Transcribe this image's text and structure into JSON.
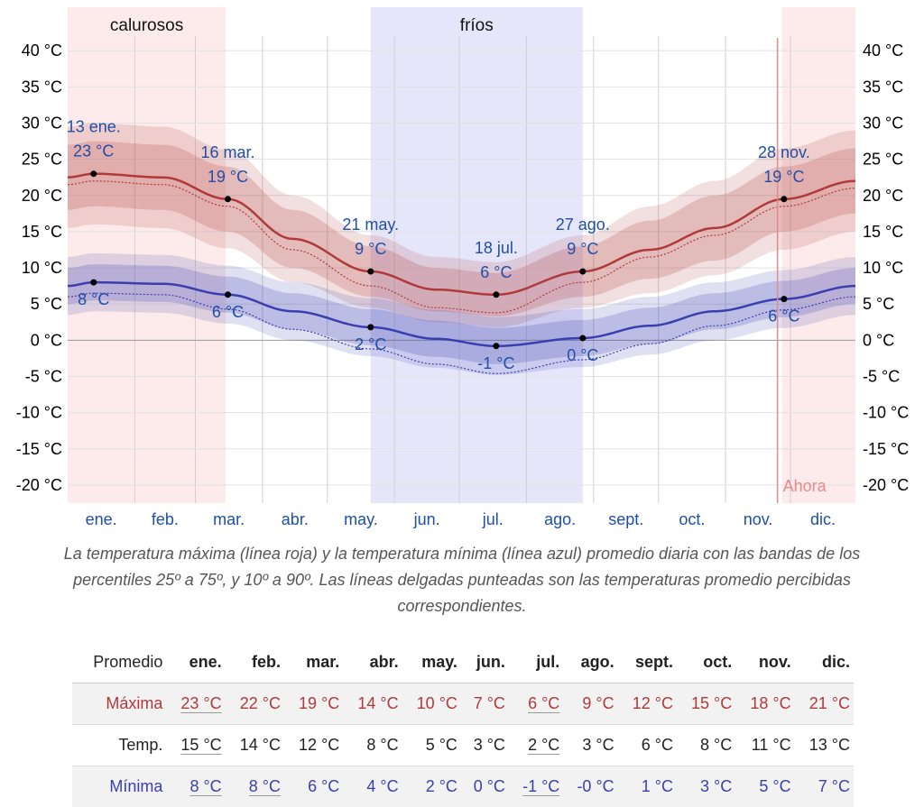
{
  "chart_data": {
    "type": "area",
    "y_ticks": [
      "40 °C",
      "35 °C",
      "30 °C",
      "25 °C",
      "20 °C",
      "15 °C",
      "10 °C",
      "5 °C",
      "0 °C",
      "-5 °C",
      "-10 °C",
      "-15 °C",
      "-20 °C"
    ],
    "ylim": [
      -22.5,
      47
    ],
    "months": [
      "ene.",
      "feb.",
      "mar.",
      "abr.",
      "may.",
      "jun.",
      "jul.",
      "ago.",
      "sept.",
      "oct.",
      "nov.",
      "dic."
    ],
    "x_day_range": [
      1,
      365
    ],
    "season_labels": {
      "warm": "calurosos",
      "cold": "fríos"
    },
    "season_bands": {
      "warm": [
        {
          "start_day": 1,
          "end_day": 74
        },
        {
          "start_day": 331,
          "end_day": 365
        }
      ],
      "cold": [
        {
          "start_day": 141,
          "end_day": 239
        }
      ]
    },
    "now_label": "Ahora",
    "now_day": 329,
    "colors": {
      "max": "#b03a3a",
      "min": "#3a3fb0",
      "warm_band": "#fdeaea",
      "cold_band": "#e6e6fb",
      "now_line": "#e58a8a"
    },
    "series": [
      {
        "key": "max",
        "x": [
          1,
          13,
          45,
          75,
          105,
          141,
          171,
          199,
          239,
          270,
          300,
          332,
          365
        ],
        "y": [
          22.5,
          23,
          22.5,
          19.5,
          14,
          9.5,
          7,
          6.3,
          9.5,
          12.5,
          15.5,
          19.5,
          22
        ],
        "p25_75": [
          4.5,
          4.5,
          4.5,
          4.5,
          4,
          3.5,
          3,
          3,
          3.5,
          4,
          4.5,
          4.5,
          4.5
        ],
        "p10_90": [
          7,
          7,
          7,
          6.8,
          6,
          5,
          4.5,
          4.5,
          5,
          6,
          6.5,
          7,
          7
        ],
        "feels_like_offset": [
          -1,
          -1,
          -1,
          -1,
          -1.5,
          -2,
          -2.5,
          -2.5,
          -1.5,
          -1,
          -1,
          -1,
          -1
        ]
      },
      {
        "key": "min",
        "x": [
          1,
          13,
          45,
          75,
          105,
          141,
          171,
          199,
          239,
          270,
          300,
          332,
          365
        ],
        "y": [
          7.5,
          8,
          7.8,
          6.3,
          4,
          1.8,
          0.2,
          -0.8,
          0.3,
          2,
          4,
          5.7,
          7.5
        ],
        "p25_75": [
          2.5,
          2.5,
          2.5,
          2.5,
          2.5,
          2.5,
          2.5,
          2.5,
          2.5,
          2.5,
          2.5,
          2.5,
          2.5
        ],
        "p10_90": [
          4,
          4,
          4,
          4,
          4,
          4,
          4,
          4,
          4,
          4,
          4,
          4,
          4
        ],
        "feels_like_offset": [
          -1.5,
          -1.5,
          -1.5,
          -2,
          -2.5,
          -3,
          -3.5,
          -3.8,
          -3,
          -2.5,
          -2,
          -1.5,
          -1.5
        ]
      }
    ],
    "annotations": [
      {
        "day": 13,
        "value": 23,
        "date": "13 ene.",
        "label": "23 °C"
      },
      {
        "day": 13,
        "value": 8,
        "label": "8 °C"
      },
      {
        "day": 75,
        "value": 19.5,
        "date": "16 mar.",
        "label": "19 °C"
      },
      {
        "day": 75,
        "value": 6.3,
        "label": "6 °C"
      },
      {
        "day": 141,
        "value": 9.5,
        "date": "21 may.",
        "label": "9 °C"
      },
      {
        "day": 141,
        "value": 1.8,
        "label": "2 °C"
      },
      {
        "day": 199,
        "value": 6.3,
        "date": "18 jul.",
        "label": "6 °C"
      },
      {
        "day": 199,
        "value": -0.8,
        "label": "-1 °C"
      },
      {
        "day": 239,
        "value": 9.5,
        "date": "27 ago.",
        "label": "9 °C"
      },
      {
        "day": 239,
        "value": 0.3,
        "label": "0 °C"
      },
      {
        "day": 332,
        "value": 19.5,
        "date": "28 nov.",
        "label": "19 °C"
      },
      {
        "day": 332,
        "value": 5.7,
        "label": "6 °C"
      }
    ]
  },
  "caption": "La temperatura máxima (línea roja) y la temperatura mínima (línea azul) promedio diaria con las bandas de los percentiles 25º a 75º, y 10º a 90º. Las líneas delgadas punteadas son las temperaturas promedio percibidas correspondientes.",
  "table": {
    "header_label": "Promedio",
    "months": [
      "ene.",
      "feb.",
      "mar.",
      "abr.",
      "may.",
      "jun.",
      "jul.",
      "ago.",
      "sept.",
      "oct.",
      "nov.",
      "dic."
    ],
    "rows": [
      {
        "label": "Máxima",
        "values": [
          "23 °C",
          "22 °C",
          "19 °C",
          "14 °C",
          "10 °C",
          "7 °C",
          "6 °C",
          "9 °C",
          "12 °C",
          "15 °C",
          "18 °C",
          "21 °C"
        ],
        "underline": [
          0,
          6
        ]
      },
      {
        "label": "Temp.",
        "values": [
          "15 °C",
          "14 °C",
          "12 °C",
          "8 °C",
          "5 °C",
          "3 °C",
          "2 °C",
          "3 °C",
          "6 °C",
          "8 °C",
          "11 °C",
          "13 °C"
        ],
        "underline": [
          0,
          6
        ]
      },
      {
        "label": "Mínima",
        "values": [
          "8 °C",
          "8 °C",
          "6 °C",
          "4 °C",
          "2 °C",
          "0 °C",
          "-1 °C",
          "-0 °C",
          "1 °C",
          "3 °C",
          "5 °C",
          "7 °C"
        ],
        "underline": [
          0,
          1,
          6
        ]
      }
    ]
  }
}
